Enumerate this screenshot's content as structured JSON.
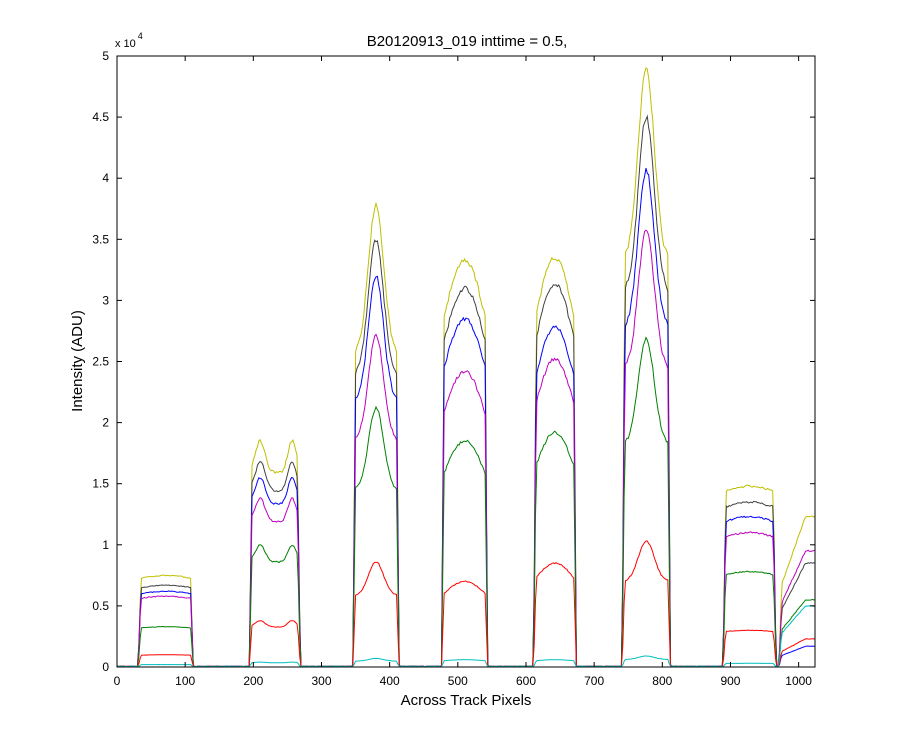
{
  "chart_data": {
    "type": "line",
    "title": "B20120913_019 inttime = 0.5,",
    "xlabel": "Across Track Pixels",
    "ylabel": "Intensity (ADU)",
    "y_multiplier": "x 10",
    "y_multiplier_exp": "4",
    "xlim": [
      0,
      1024
    ],
    "ylim": [
      0,
      5
    ],
    "xticks": [
      0,
      100,
      200,
      300,
      400,
      500,
      600,
      700,
      800,
      900,
      1000
    ],
    "yticks": [
      0,
      0.5,
      1,
      1.5,
      2,
      2.5,
      3,
      3.5,
      4,
      4.5,
      5
    ],
    "ytick_labels": [
      "0",
      "0.5",
      "1",
      "1.5",
      "2",
      "2.5",
      "3",
      "3.5",
      "4",
      "4.5",
      "5"
    ],
    "grid": false,
    "blocks": [
      {
        "start": 35,
        "end": 108,
        "shape": "flat"
      },
      {
        "start": 198,
        "end": 265,
        "shape": "double-hump"
      },
      {
        "start": 350,
        "end": 410,
        "shape": "peak"
      },
      {
        "start": 480,
        "end": 540,
        "shape": "dome"
      },
      {
        "start": 615,
        "end": 670,
        "shape": "dome"
      },
      {
        "start": 745,
        "end": 808,
        "shape": "peak"
      },
      {
        "start": 893,
        "end": 963,
        "shape": "flat"
      },
      {
        "start": 975,
        "end": 1024,
        "shape": "rise"
      }
    ],
    "series": [
      {
        "color": "#bfbf00",
        "peaks": [
          0.75,
          1.85,
          3.78,
          3.33,
          3.35,
          4.9,
          1.48,
          1.23
        ]
      },
      {
        "color": "#404040",
        "peaks": [
          0.67,
          1.68,
          3.5,
          3.1,
          3.13,
          4.5,
          1.35,
          0.85
        ]
      },
      {
        "color": "#0000ff",
        "peaks": [
          0.62,
          1.55,
          3.2,
          2.85,
          2.78,
          4.07,
          1.23,
          0.17
        ]
      },
      {
        "color": "#bf00bf",
        "peaks": [
          0.58,
          1.38,
          2.72,
          2.42,
          2.52,
          3.58,
          1.1,
          0.95
        ]
      },
      {
        "color": "#008000",
        "peaks": [
          0.33,
          1.0,
          2.12,
          1.85,
          1.92,
          2.68,
          0.78,
          0.55
        ]
      },
      {
        "color": "#ff0000",
        "peaks": [
          0.1,
          0.38,
          0.86,
          0.7,
          0.85,
          1.03,
          0.3,
          0.23
        ]
      },
      {
        "color": "#00bfbf",
        "peaks": [
          0.02,
          0.04,
          0.07,
          0.06,
          0.06,
          0.09,
          0.03,
          0.5
        ]
      }
    ]
  }
}
